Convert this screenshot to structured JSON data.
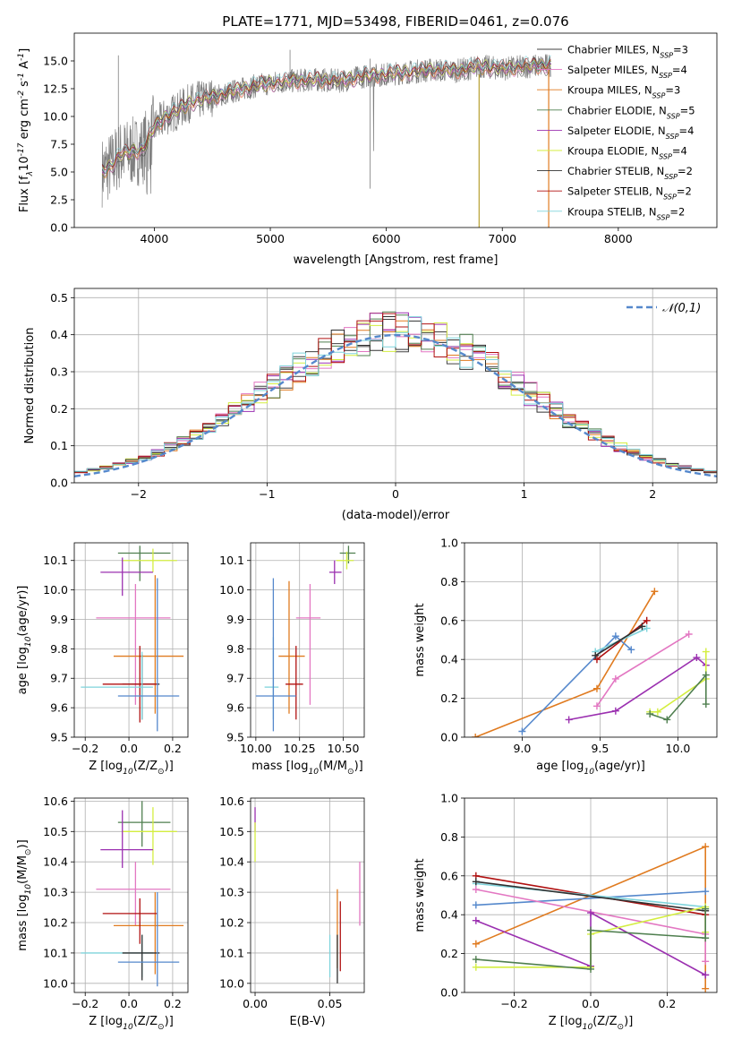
{
  "chart_data": [
    {
      "id": "spectrum",
      "type": "line",
      "title": "PLATE=1771, MJD=53498, FIBERID=0461, z=0.076",
      "xlabel": "wavelength [Angstrom, rest frame]",
      "ylabel": "Flux [f$_\\lambda$10$^{-17}$ erg cm$^{-2}$ s$^{-1}$ A$^{-1}$]",
      "xlim": [
        3310,
        8850
      ],
      "ylim": [
        0,
        17.5
      ],
      "xticks": [
        4000,
        5000,
        6000,
        7000,
        8000
      ],
      "yticks": [
        0.0,
        2.5,
        5.0,
        7.5,
        10.0,
        12.5,
        15.0
      ],
      "grid": false,
      "legend_position": "top-right",
      "observed_trend": {
        "x": [
          3550,
          3620,
          3700,
          3800,
          3900,
          4000,
          4100,
          4200,
          4300,
          4400,
          4600,
          4800,
          5000,
          5200,
          5400,
          5600,
          5800,
          6000,
          6200,
          6400,
          6600,
          6800,
          7000,
          7200,
          7400
        ],
        "y": [
          5.0,
          5.5,
          6.5,
          6.8,
          7.0,
          9.0,
          10.0,
          10.5,
          11.2,
          11.5,
          12.0,
          12.6,
          13.0,
          13.2,
          13.3,
          13.2,
          13.6,
          13.8,
          14.0,
          14.2,
          14.1,
          14.5,
          14.3,
          14.5,
          14.6
        ]
      },
      "series": [
        {
          "name": "Chabrier MILES, N$_{SSP}$=3",
          "color": "#404040"
        },
        {
          "name": "Salpeter MILES, N$_{SSP}$=4",
          "color": "#e377c2"
        },
        {
          "name": "Kroupa MILES, N$_{SSP}$=3",
          "color": "#e07b20"
        },
        {
          "name": "Chabrier ELODIE, N$_{SSP}$=5",
          "color": "#4f7f4f"
        },
        {
          "name": "Salpeter ELODIE, N$_{SSP}$=4",
          "color": "#9b30b0"
        },
        {
          "name": "Kroupa ELODIE, N$_{SSP}$=4",
          "color": "#d4ee40"
        },
        {
          "name": "Chabrier STELIB, N$_{SSP}$=2",
          "color": "#303030"
        },
        {
          "name": "Salpeter STELIB, N$_{SSP}$=2",
          "color": "#b01010"
        },
        {
          "name": "Kroupa STELIB, N$_{SSP}$=2",
          "color": "#7fd4dc"
        }
      ]
    },
    {
      "id": "residuals",
      "type": "line",
      "xlabel": "(data-model)/error",
      "ylabel": "Normed distribution",
      "xlim": [
        -2.5,
        2.5
      ],
      "ylim": [
        0,
        0.525
      ],
      "xticks": [
        -2,
        -1,
        0,
        1,
        2
      ],
      "yticks": [
        0.0,
        0.1,
        0.2,
        0.3,
        0.4,
        0.5
      ],
      "grid": true,
      "legend_position": "top-right",
      "legend": [
        "$\\mathcal{N}(0,1)$"
      ],
      "bin_width": 0.1,
      "reference_color": "#5588cc"
    },
    {
      "id": "age-vs-Z",
      "type": "scatter",
      "xlabel": "Z [log$_{10}$(Z/Z$_\\odot$)]",
      "ylabel": "age  [log$_{10}$(age/yr)]",
      "xlim": [
        -0.25,
        0.27
      ],
      "ylim": [
        9.5,
        10.16
      ],
      "xticks": [
        -0.2,
        0.0,
        0.2
      ],
      "yticks": [
        9.5,
        9.6,
        9.7,
        9.8,
        9.9,
        10.0,
        10.1
      ],
      "grid": true,
      "points": [
        {
          "x": 0.05,
          "y": 10.125,
          "xlo": -0.05,
          "xhi": 0.19,
          "ylo": 10.03,
          "yhi": 10.15,
          "color": "#4f7f4f"
        },
        {
          "x": 0.11,
          "y": 10.1,
          "xlo": -0.03,
          "xhi": 0.22,
          "ylo": 10.06,
          "yhi": 10.14,
          "color": "#d4ee40"
        },
        {
          "x": -0.03,
          "y": 10.06,
          "xlo": -0.13,
          "xhi": 0.11,
          "ylo": 9.98,
          "yhi": 10.11,
          "color": "#9b30b0"
        },
        {
          "x": 0.03,
          "y": 9.905,
          "xlo": -0.15,
          "xhi": 0.19,
          "ylo": 9.61,
          "yhi": 10.02,
          "color": "#e377c2"
        },
        {
          "x": 0.12,
          "y": 9.775,
          "xlo": -0.07,
          "xhi": 0.25,
          "ylo": 9.58,
          "yhi": 10.05,
          "color": "#e07b20"
        },
        {
          "x": 0.06,
          "y": 9.68,
          "xlo": -0.03,
          "xhi": 0.14,
          "ylo": 9.56,
          "yhi": 9.78,
          "color": "#303030"
        },
        {
          "x": 0.05,
          "y": 9.68,
          "xlo": -0.12,
          "xhi": 0.13,
          "ylo": 9.55,
          "yhi": 9.81,
          "color": "#b01010"
        },
        {
          "x": 0.06,
          "y": 9.67,
          "xlo": -0.22,
          "xhi": 0.11,
          "ylo": 9.56,
          "yhi": 9.79,
          "color": "#7fd4dc"
        },
        {
          "x": 0.13,
          "y": 9.64,
          "xlo": -0.05,
          "xhi": 0.23,
          "ylo": 9.52,
          "yhi": 10.04,
          "color": "#5588cc"
        }
      ]
    },
    {
      "id": "age-vs-mass",
      "type": "scatter",
      "xlabel": "mass [log$_{10}$(M/M$_\\odot$)]",
      "ylabel": "",
      "xlim": [
        9.97,
        10.62
      ],
      "ylim": [
        9.5,
        10.16
      ],
      "xticks": [
        10.0,
        10.25,
        10.5
      ],
      "tick_labels": [
        "10.00",
        "10.25",
        "10.50"
      ],
      "yticks": [
        9.5,
        9.6,
        9.7,
        9.8,
        9.9,
        10.0,
        10.1
      ],
      "grid": true,
      "points": [
        {
          "x": 10.53,
          "y": 10.125,
          "xlo": 10.48,
          "xhi": 10.57,
          "ylo": 10.09,
          "yhi": 10.15,
          "color": "#4f7f4f"
        },
        {
          "x": 10.52,
          "y": 10.1,
          "xlo": 10.46,
          "xhi": 10.56,
          "ylo": 10.07,
          "yhi": 10.13,
          "color": "#d4ee40"
        },
        {
          "x": 10.45,
          "y": 10.06,
          "xlo": 10.42,
          "xhi": 10.49,
          "ylo": 10.02,
          "yhi": 10.1,
          "color": "#9b30b0"
        },
        {
          "x": 10.31,
          "y": 9.905,
          "xlo": 10.23,
          "xhi": 10.37,
          "ylo": 9.61,
          "yhi": 10.02,
          "color": "#e377c2"
        },
        {
          "x": 10.19,
          "y": 9.775,
          "xlo": 10.13,
          "xhi": 10.28,
          "ylo": 9.58,
          "yhi": 10.03,
          "color": "#e07b20"
        },
        {
          "x": 10.23,
          "y": 9.68,
          "xlo": 10.17,
          "xhi": 10.27,
          "ylo": 9.56,
          "yhi": 9.81,
          "color": "#b01010"
        },
        {
          "x": 10.1,
          "y": 9.67,
          "xlo": 10.05,
          "xhi": 10.13,
          "ylo": 9.56,
          "yhi": 9.84,
          "color": "#7fd4dc"
        },
        {
          "x": 10.1,
          "y": 9.64,
          "xlo": 10.0,
          "xhi": 10.23,
          "ylo": 9.52,
          "yhi": 10.04,
          "color": "#5588cc"
        }
      ]
    },
    {
      "id": "weight-vs-age",
      "type": "line",
      "xlabel": "age  [log$_{10}$(age/yr)]",
      "ylabel": "mass weight",
      "xlim": [
        8.63,
        10.25
      ],
      "ylim": [
        0.0,
        1.0
      ],
      "xticks": [
        9.0,
        9.5,
        10.0
      ],
      "yticks": [
        0.0,
        0.2,
        0.4,
        0.6,
        0.8,
        1.0
      ],
      "grid": true,
      "series": [
        {
          "color": "#e07b20",
          "x": [
            8.7,
            9.48,
            9.85
          ],
          "y": [
            0.0,
            0.25,
            0.75
          ]
        },
        {
          "color": "#5588cc",
          "x": [
            9.0,
            9.6,
            9.7
          ],
          "y": [
            0.03,
            0.52,
            0.45
          ]
        },
        {
          "color": "#b01010",
          "x": [
            9.48,
            9.8
          ],
          "y": [
            0.4,
            0.6
          ]
        },
        {
          "color": "#7fd4dc",
          "x": [
            9.47,
            9.8
          ],
          "y": [
            0.44,
            0.56
          ]
        },
        {
          "color": "#303030",
          "x": [
            9.47,
            9.77
          ],
          "y": [
            0.42,
            0.57
          ]
        },
        {
          "color": "#e377c2",
          "x": [
            9.48,
            9.6,
            10.07
          ],
          "y": [
            0.16,
            0.3,
            0.53
          ]
        },
        {
          "color": "#9b30b0",
          "x": [
            9.3,
            9.6,
            10.12,
            10.18
          ],
          "y": [
            0.09,
            0.135,
            0.41,
            0.37
          ]
        },
        {
          "color": "#d4ee40",
          "x": [
            9.82,
            9.87,
            10.18,
            10.18
          ],
          "y": [
            0.13,
            0.13,
            0.3,
            0.44
          ]
        },
        {
          "color": "#4f7f4f",
          "x": [
            9.82,
            9.93,
            10.18,
            10.18
          ],
          "y": [
            0.12,
            0.09,
            0.32,
            0.17
          ]
        }
      ]
    },
    {
      "id": "mass-vs-Z",
      "type": "scatter",
      "xlabel": "Z [log$_{10}$(Z/Z$_\\odot$)]",
      "ylabel": "mass [log$_{10}$(M/M$_\\odot$)]",
      "xlim": [
        -0.25,
        0.27
      ],
      "ylim": [
        9.97,
        10.61
      ],
      "xticks": [
        -0.2,
        0.0,
        0.2
      ],
      "yticks": [
        10.0,
        10.1,
        10.2,
        10.3,
        10.4,
        10.5,
        10.6
      ],
      "grid": true,
      "points": [
        {
          "x": 0.06,
          "y": 10.53,
          "xlo": -0.05,
          "xhi": 0.19,
          "ylo": 10.45,
          "yhi": 10.6,
          "color": "#4f7f4f"
        },
        {
          "x": 0.11,
          "y": 10.5,
          "xlo": -0.03,
          "xhi": 0.22,
          "ylo": 10.39,
          "yhi": 10.58,
          "color": "#d4ee40"
        },
        {
          "x": -0.03,
          "y": 10.44,
          "xlo": -0.13,
          "xhi": 0.11,
          "ylo": 10.38,
          "yhi": 10.57,
          "color": "#9b30b0"
        },
        {
          "x": 0.03,
          "y": 10.31,
          "xlo": -0.15,
          "xhi": 0.19,
          "ylo": 10.19,
          "yhi": 10.4,
          "color": "#e377c2"
        },
        {
          "x": 0.12,
          "y": 10.19,
          "xlo": -0.07,
          "xhi": 0.25,
          "ylo": 10.03,
          "yhi": 10.3,
          "color": "#e07b20"
        },
        {
          "x": 0.05,
          "y": 10.23,
          "xlo": -0.12,
          "xhi": 0.13,
          "ylo": 10.13,
          "yhi": 10.28,
          "color": "#b01010"
        },
        {
          "x": 0.06,
          "y": 10.1,
          "xlo": -0.22,
          "xhi": 0.11,
          "ylo": 10.02,
          "yhi": 10.16,
          "color": "#7fd4dc"
        },
        {
          "x": 0.06,
          "y": 10.1,
          "xlo": -0.03,
          "xhi": 0.14,
          "ylo": 10.01,
          "yhi": 10.16,
          "color": "#303030"
        },
        {
          "x": 0.13,
          "y": 10.07,
          "xlo": -0.05,
          "xhi": 0.23,
          "ylo": 9.99,
          "yhi": 10.3,
          "color": "#5588cc"
        }
      ]
    },
    {
      "id": "mass-vs-ebv",
      "type": "scatter",
      "xlabel": "E(B-V)",
      "ylabel": "",
      "xlim": [
        -0.003,
        0.073
      ],
      "ylim": [
        9.97,
        10.61
      ],
      "xticks": [
        0.0,
        0.05
      ],
      "tick_labels": [
        "0.00",
        "0.05"
      ],
      "yticks": [
        10.0,
        10.1,
        10.2,
        10.3,
        10.4,
        10.5,
        10.6
      ],
      "grid": true,
      "points": [
        {
          "x": 0.0,
          "y": 10.53,
          "xlo": 0.0,
          "xhi": 0.0,
          "ylo": 10.5,
          "yhi": 10.58,
          "color": "#9b30b0"
        },
        {
          "x": 0.0,
          "y": 10.47,
          "xlo": 0.0,
          "xhi": 0.0,
          "ylo": 10.4,
          "yhi": 10.53,
          "color": "#d4ee40"
        },
        {
          "x": 0.07,
          "y": 10.29,
          "xlo": 0.07,
          "xhi": 0.07,
          "ylo": 10.19,
          "yhi": 10.4,
          "color": "#e377c2"
        },
        {
          "x": 0.055,
          "y": 10.17,
          "xlo": 0.055,
          "xhi": 0.055,
          "ylo": 10.05,
          "yhi": 10.31,
          "color": "#e07b20"
        },
        {
          "x": 0.057,
          "y": 10.15,
          "xlo": 0.057,
          "xhi": 0.057,
          "ylo": 10.04,
          "yhi": 10.27,
          "color": "#b01010"
        },
        {
          "x": 0.05,
          "y": 10.1,
          "xlo": 0.05,
          "xhi": 0.05,
          "ylo": 10.02,
          "yhi": 10.16,
          "color": "#7fd4dc"
        },
        {
          "x": 0.055,
          "y": 10.08,
          "xlo": 0.055,
          "xhi": 0.055,
          "ylo": 10.0,
          "yhi": 10.16,
          "color": "#303030"
        }
      ]
    },
    {
      "id": "weight-vs-Z",
      "type": "line",
      "xlabel": "Z [log$_{10}$(Z/Z$_\\odot$)]",
      "ylabel": "mass weight",
      "xlim": [
        -0.33,
        0.33
      ],
      "ylim": [
        0.0,
        1.0
      ],
      "xticks": [
        -0.2,
        0.0,
        0.2
      ],
      "yticks": [
        0.0,
        0.2,
        0.4,
        0.6,
        0.8,
        1.0
      ],
      "grid": true,
      "series": [
        {
          "color": "#e07b20",
          "x": [
            -0.3,
            0.3,
            0.3
          ],
          "y": [
            0.25,
            0.75,
            0.02
          ]
        },
        {
          "color": "#5588cc",
          "x": [
            -0.3,
            0.3
          ],
          "y": [
            0.45,
            0.52
          ]
        },
        {
          "color": "#b01010",
          "x": [
            -0.3,
            0.3
          ],
          "y": [
            0.6,
            0.4
          ]
        },
        {
          "color": "#7fd4dc",
          "x": [
            -0.3,
            0.3
          ],
          "y": [
            0.56,
            0.44
          ]
        },
        {
          "color": "#303030",
          "x": [
            -0.3,
            0.3
          ],
          "y": [
            0.57,
            0.42
          ]
        },
        {
          "color": "#e377c2",
          "x": [
            -0.3,
            0.3,
            0.3
          ],
          "y": [
            0.53,
            0.3,
            0.16
          ]
        },
        {
          "color": "#9b30b0",
          "x": [
            -0.3,
            0.0,
            0.0,
            0.3,
            0.3
          ],
          "y": [
            0.37,
            0.135,
            0.41,
            0.09,
            0.09
          ]
        },
        {
          "color": "#d4ee40",
          "x": [
            -0.3,
            0.0,
            0.0,
            0.3,
            0.3
          ],
          "y": [
            0.13,
            0.13,
            0.3,
            0.44,
            0.31
          ]
        },
        {
          "color": "#4f7f4f",
          "x": [
            -0.3,
            0.0,
            0.0,
            0.3,
            0.3
          ],
          "y": [
            0.17,
            0.12,
            0.32,
            0.28,
            0.43
          ]
        }
      ]
    }
  ]
}
